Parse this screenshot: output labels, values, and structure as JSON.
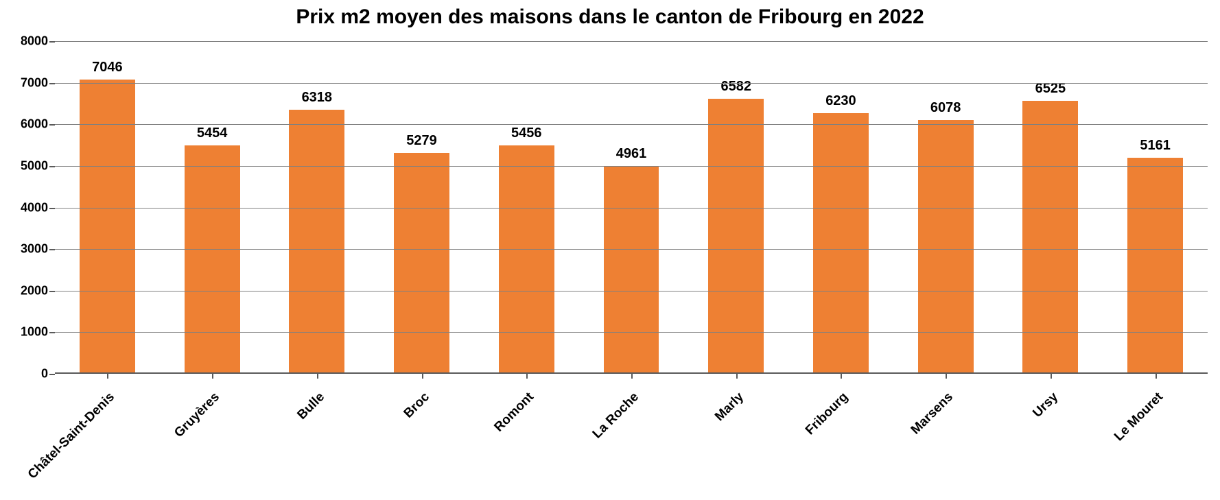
{
  "chart": {
    "type": "bar",
    "title": "Prix m2 moyen des maisons dans le canton de Fribourg en 2022",
    "title_fontsize": 30,
    "title_fontweight": 700,
    "background_color": "#ffffff",
    "bar_color": "#ee8033",
    "grid_color": "#808080",
    "axis_color": "#5a5a5a",
    "label_color": "#000000",
    "value_label_fontsize": 20,
    "axis_label_fontsize": 18,
    "category_label_fontsize": 19,
    "ylim": [
      0,
      8000
    ],
    "ytick_step": 1000,
    "yticks": [
      "0",
      "1000",
      "2000",
      "3000",
      "4000",
      "5000",
      "6000",
      "7000",
      "8000"
    ],
    "bar_width_ratio": 0.53,
    "x_label_rotation_deg": -45,
    "categories": [
      "Châtel-Saint-Denis",
      "Gruyères",
      "Bulle",
      "Broc",
      "Romont",
      "La Roche",
      "Marly",
      "Fribourg",
      "Marsens",
      "Ursy",
      "Le Mouret"
    ],
    "values": [
      7046,
      5454,
      6318,
      5279,
      5456,
      4961,
      6582,
      6230,
      6078,
      6525,
      5161
    ]
  }
}
